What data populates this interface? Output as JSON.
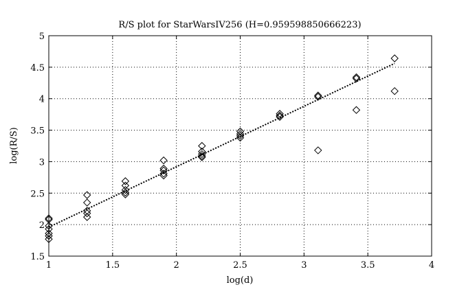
{
  "chart_data": {
    "type": "scatter",
    "title": "R/S plot for StarWarsIV256 (H=0.959598850666223)",
    "xlabel": "log(d)",
    "ylabel": "log(R/S)",
    "xlim": [
      1,
      4
    ],
    "ylim": [
      1.5,
      5
    ],
    "xticks": [
      1,
      1.5,
      2,
      2.5,
      3,
      3.5,
      4
    ],
    "yticks": [
      1.5,
      2,
      2.5,
      3,
      3.5,
      4,
      4.5,
      5
    ],
    "xtick_labels": [
      "1",
      "1.5",
      "2",
      "2.5",
      "3",
      "3.5",
      "4"
    ],
    "ytick_labels": [
      "1.5",
      "2",
      "2.5",
      "3",
      "3.5",
      "4",
      "4.5",
      "5"
    ],
    "grid": true,
    "grid_style": "dotted",
    "marker": "diamond-open",
    "points": [
      {
        "x": 1.0,
        "y": 2.1
      },
      {
        "x": 1.0,
        "y": 2.08
      },
      {
        "x": 1.0,
        "y": 1.98
      },
      {
        "x": 1.0,
        "y": 1.93
      },
      {
        "x": 1.0,
        "y": 1.86
      },
      {
        "x": 1.0,
        "y": 1.82
      },
      {
        "x": 1.0,
        "y": 1.77
      },
      {
        "x": 1.3,
        "y": 2.47
      },
      {
        "x": 1.3,
        "y": 2.35
      },
      {
        "x": 1.3,
        "y": 2.22
      },
      {
        "x": 1.3,
        "y": 2.18
      },
      {
        "x": 1.3,
        "y": 2.12
      },
      {
        "x": 1.6,
        "y": 2.69
      },
      {
        "x": 1.6,
        "y": 2.62
      },
      {
        "x": 1.6,
        "y": 2.55
      },
      {
        "x": 1.6,
        "y": 2.51
      },
      {
        "x": 1.6,
        "y": 2.48
      },
      {
        "x": 1.9,
        "y": 3.02
      },
      {
        "x": 1.9,
        "y": 2.89
      },
      {
        "x": 1.9,
        "y": 2.86
      },
      {
        "x": 1.9,
        "y": 2.81
      },
      {
        "x": 1.9,
        "y": 2.78
      },
      {
        "x": 2.2,
        "y": 3.25
      },
      {
        "x": 2.2,
        "y": 3.16
      },
      {
        "x": 2.2,
        "y": 3.12
      },
      {
        "x": 2.2,
        "y": 3.09
      },
      {
        "x": 2.2,
        "y": 3.07
      },
      {
        "x": 2.5,
        "y": 3.48
      },
      {
        "x": 2.5,
        "y": 3.44
      },
      {
        "x": 2.5,
        "y": 3.41
      },
      {
        "x": 2.5,
        "y": 3.38
      },
      {
        "x": 2.81,
        "y": 3.76
      },
      {
        "x": 2.81,
        "y": 3.73
      },
      {
        "x": 2.81,
        "y": 3.71
      },
      {
        "x": 3.11,
        "y": 4.05
      },
      {
        "x": 3.11,
        "y": 4.03
      },
      {
        "x": 3.11,
        "y": 3.18
      },
      {
        "x": 3.41,
        "y": 4.34
      },
      {
        "x": 3.41,
        "y": 4.32
      },
      {
        "x": 3.41,
        "y": 3.82
      },
      {
        "x": 3.71,
        "y": 4.64
      },
      {
        "x": 3.71,
        "y": 4.12
      }
    ],
    "fit_line": {
      "x": [
        1.0,
        3.71
      ],
      "y": [
        1.96,
        4.56
      ],
      "style": "dotted"
    }
  }
}
